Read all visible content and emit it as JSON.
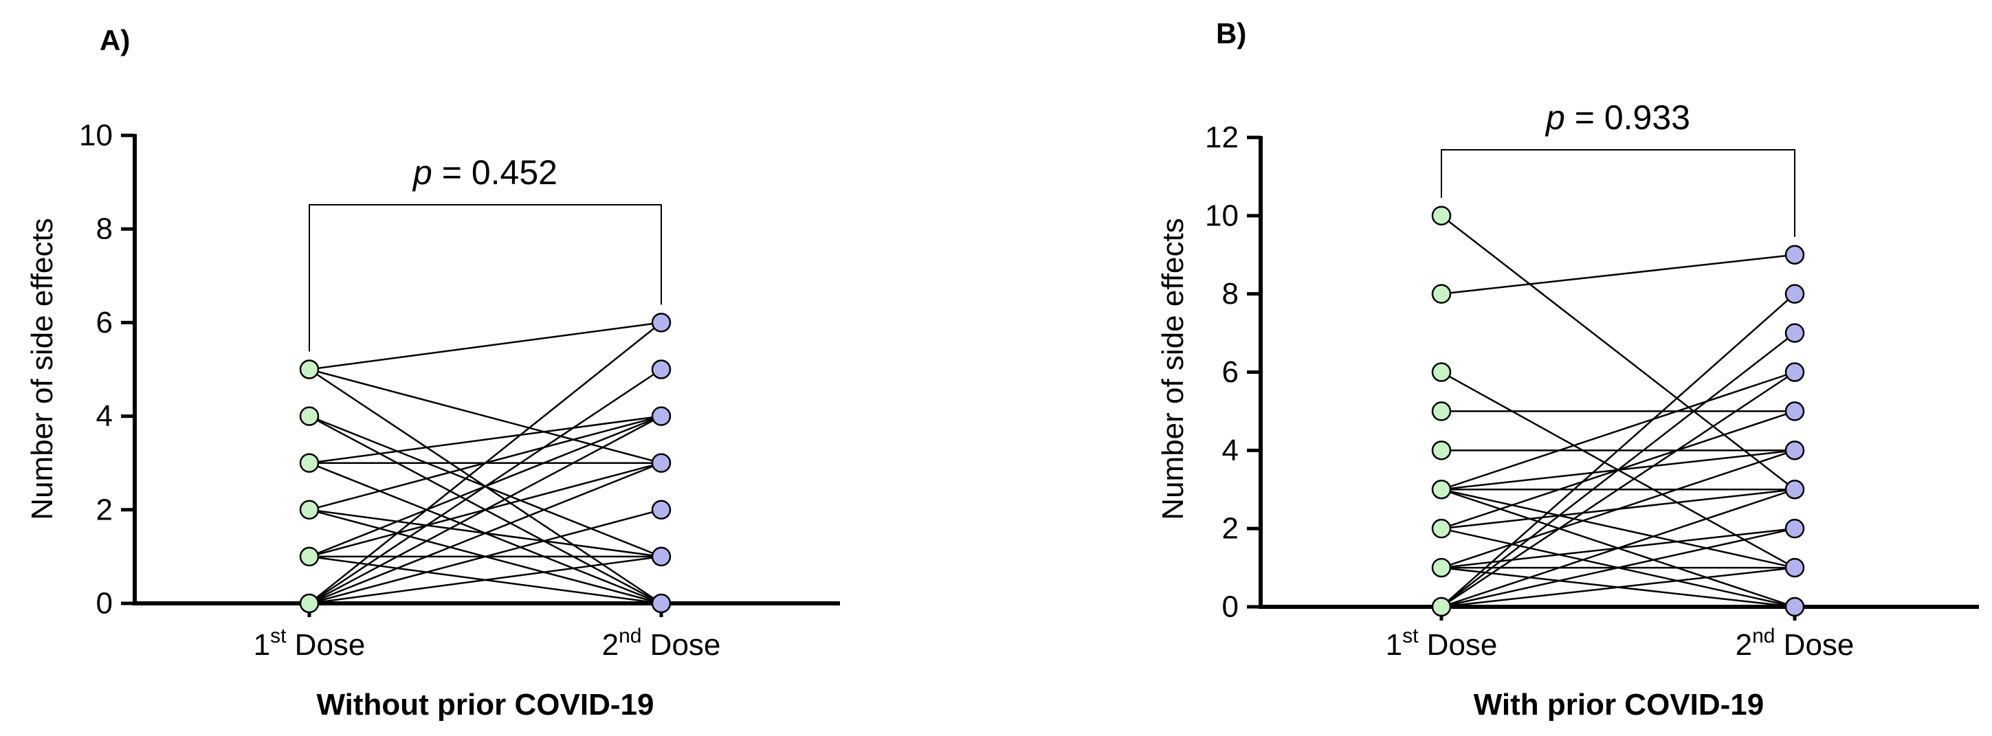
{
  "chart_data": [
    {
      "type": "scatter",
      "panel_label": "A)",
      "title": "",
      "xlabel": "Without prior COVID-19",
      "ylabel": "Number of side effects",
      "ylim": [
        0,
        10
      ],
      "yticks": [
        "0",
        "2",
        "4",
        "6",
        "8",
        "10"
      ],
      "categories": [
        {
          "main": "1",
          "sup": "st",
          "rest": " Dose"
        },
        {
          "main": "2",
          "sup": "nd",
          "rest": " Dose"
        }
      ],
      "p_prefix": "p",
      "p_value": " = 0.452",
      "colors": {
        "first": "#c9f2c7",
        "second": "#b3b3ef"
      },
      "pairs": [
        [
          5,
          6
        ],
        [
          5,
          3
        ],
        [
          5,
          0
        ],
        [
          4,
          1
        ],
        [
          4,
          0
        ],
        [
          3,
          4
        ],
        [
          3,
          3
        ],
        [
          3,
          0
        ],
        [
          2,
          4
        ],
        [
          2,
          1
        ],
        [
          2,
          0
        ],
        [
          1,
          4
        ],
        [
          1,
          3
        ],
        [
          1,
          1
        ],
        [
          1,
          0
        ],
        [
          0,
          6
        ],
        [
          0,
          5
        ],
        [
          0,
          4
        ],
        [
          0,
          3
        ],
        [
          0,
          2
        ],
        [
          0,
          1
        ],
        [
          0,
          0
        ]
      ]
    },
    {
      "type": "scatter",
      "panel_label": "B)",
      "title": "",
      "xlabel": "With prior COVID-19",
      "ylabel": "Number of side effects",
      "ylim": [
        0,
        12
      ],
      "yticks": [
        "0",
        "2",
        "4",
        "6",
        "8",
        "10",
        "12"
      ],
      "categories": [
        {
          "main": "1",
          "sup": "st",
          "rest": " Dose"
        },
        {
          "main": "2",
          "sup": "nd",
          "rest": " Dose"
        }
      ],
      "p_prefix": "p",
      "p_value": " = 0.933",
      "colors": {
        "first": "#c9f2c7",
        "second": "#b3b3ef"
      },
      "pairs": [
        [
          10,
          3
        ],
        [
          8,
          9
        ],
        [
          6,
          1
        ],
        [
          5,
          5
        ],
        [
          4,
          4
        ],
        [
          3,
          6
        ],
        [
          3,
          4
        ],
        [
          3,
          3
        ],
        [
          3,
          1
        ],
        [
          3,
          0
        ],
        [
          2,
          5
        ],
        [
          2,
          3
        ],
        [
          2,
          0
        ],
        [
          1,
          4
        ],
        [
          1,
          2
        ],
        [
          1,
          1
        ],
        [
          1,
          0
        ],
        [
          0,
          8
        ],
        [
          0,
          7
        ],
        [
          0,
          6
        ],
        [
          0,
          3
        ],
        [
          0,
          2
        ],
        [
          0,
          1
        ],
        [
          0,
          0
        ]
      ]
    }
  ]
}
